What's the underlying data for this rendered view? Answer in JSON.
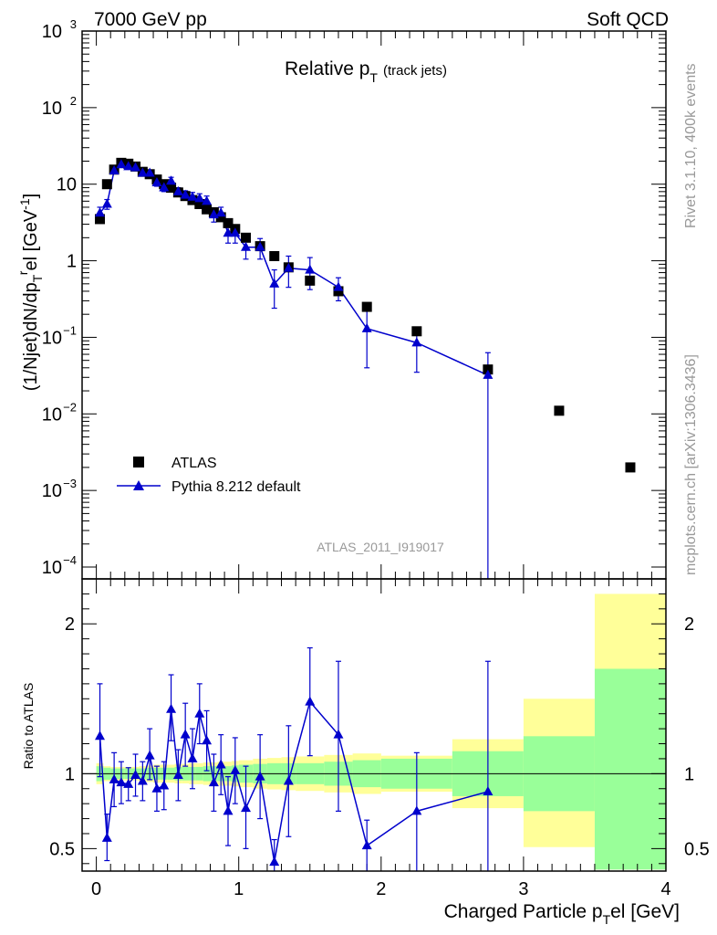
{
  "header": {
    "left": "7000 GeV pp",
    "right": "Soft QCD"
  },
  "side_labels": {
    "rivet": "Rivet 3.1.10,  400k events",
    "source": "mcplots.cern.ch [arXiv:1306.3436]"
  },
  "watermark": "ATLAS_2011_I919017",
  "colors": {
    "data": "#000000",
    "mc": "#0000cc",
    "band_inner": "#99ff99",
    "band_outer": "#ffff99"
  },
  "chart_data": [
    {
      "type": "scatter",
      "panel": "main",
      "title": "Relative p",
      "title_sub": "T",
      "title_note": "(track jets)",
      "ylabel": "(1/Njet)dN/dp",
      "ylabel_tail": "el [GeV",
      "yscale": "log",
      "xlim": [
        -0.1,
        4.0
      ],
      "ylim": [
        7e-05,
        1000
      ],
      "y_ticks": [
        {
          "value": 1000,
          "label": "10",
          "exp": "3"
        },
        {
          "value": 100,
          "label": "10",
          "exp": "2"
        },
        {
          "value": 10,
          "label": "10",
          "exp": ""
        },
        {
          "value": 1,
          "label": "1",
          "exp": ""
        },
        {
          "value": 0.1,
          "label": "10",
          "exp": "−1"
        },
        {
          "value": 0.01,
          "label": "10",
          "exp": "−2"
        },
        {
          "value": 0.001,
          "label": "10",
          "exp": "−3"
        },
        {
          "value": 0.0001,
          "label": "10",
          "exp": "−4"
        }
      ],
      "legend": {
        "position": "bottom-left",
        "entries": [
          "ATLAS",
          "Pythia 8.212 default"
        ]
      },
      "series": [
        {
          "name": "ATLAS",
          "marker": "square",
          "x": [
            0.025,
            0.075,
            0.125,
            0.175,
            0.225,
            0.275,
            0.325,
            0.375,
            0.425,
            0.475,
            0.525,
            0.575,
            0.625,
            0.675,
            0.725,
            0.775,
            0.825,
            0.875,
            0.925,
            0.975,
            1.05,
            1.15,
            1.25,
            1.35,
            1.5,
            1.7,
            1.9,
            2.25,
            2.75,
            3.25,
            3.75
          ],
          "y": [
            3.5,
            10.0,
            15.5,
            19.0,
            18.5,
            17.0,
            14.5,
            13.5,
            11.5,
            10.0,
            9.0,
            7.8,
            7.0,
            6.2,
            5.5,
            4.7,
            4.3,
            3.7,
            3.1,
            2.6,
            2.0,
            1.55,
            1.15,
            0.82,
            0.55,
            0.4,
            0.25,
            0.12,
            0.038,
            0.011,
            0.002
          ]
        },
        {
          "name": "Pythia 8.212 default",
          "marker": "triangle",
          "x": [
            0.025,
            0.075,
            0.125,
            0.175,
            0.225,
            0.275,
            0.325,
            0.375,
            0.425,
            0.475,
            0.525,
            0.575,
            0.625,
            0.675,
            0.725,
            0.775,
            0.825,
            0.875,
            0.925,
            0.975,
            1.05,
            1.15,
            1.25,
            1.35,
            1.5,
            1.7,
            1.9,
            2.25,
            2.75
          ],
          "y": [
            4.2,
            5.5,
            15.0,
            18.0,
            17.0,
            16.5,
            14.0,
            14.0,
            10.5,
            9.0,
            11.0,
            8.0,
            7.2,
            6.8,
            6.5,
            6.0,
            4.0,
            4.2,
            2.3,
            2.3,
            1.5,
            1.5,
            0.5,
            0.8,
            0.76,
            0.45,
            0.13,
            0.085,
            0.032
          ],
          "y_low": [
            3.4,
            4.7,
            13.8,
            17.0,
            16.0,
            15.5,
            12.8,
            12.8,
            9.4,
            8.0,
            9.7,
            7.0,
            6.2,
            5.8,
            5.5,
            5.0,
            3.2,
            3.4,
            1.7,
            1.7,
            1.05,
            1.05,
            0.24,
            0.45,
            0.42,
            0.3,
            0.04,
            0.035,
            7e-05
          ],
          "y_high": [
            5.0,
            6.3,
            16.2,
            19.0,
            18.0,
            17.5,
            15.2,
            15.2,
            11.6,
            10.0,
            12.3,
            9.0,
            8.2,
            7.8,
            7.5,
            7.0,
            4.8,
            5.0,
            2.9,
            2.9,
            1.95,
            1.95,
            0.76,
            1.15,
            1.1,
            0.6,
            0.22,
            0.135,
            0.063
          ]
        }
      ]
    },
    {
      "type": "line",
      "panel": "ratio",
      "ylabel": "Ratio to ATLAS",
      "xlabel": "Charged Particle p",
      "xlabel_sub": "T",
      "xlabel_tail": "el [GeV]",
      "xlim": [
        -0.1,
        4.0
      ],
      "ylim": [
        0.35,
        2.3
      ],
      "x_ticks": [
        "0",
        "1",
        "2",
        "3",
        "4"
      ],
      "x_tick_values": [
        0,
        1,
        2,
        3,
        4
      ],
      "y_ticks": [
        "0.5",
        "1",
        "2"
      ],
      "y_tick_values": [
        0.5,
        1,
        2
      ],
      "bands": {
        "edges": [
          0,
          0.05,
          0.1,
          0.15,
          0.2,
          0.25,
          0.3,
          0.35,
          0.4,
          0.45,
          0.5,
          0.55,
          0.6,
          0.65,
          0.7,
          0.75,
          0.8,
          0.85,
          0.9,
          0.95,
          1.0,
          1.1,
          1.2,
          1.3,
          1.4,
          1.6,
          1.8,
          2.0,
          2.5,
          3.0,
          3.5,
          4.0
        ],
        "inner_low": [
          0.95,
          0.96,
          0.965,
          0.965,
          0.965,
          0.965,
          0.965,
          0.96,
          0.96,
          0.96,
          0.96,
          0.955,
          0.955,
          0.955,
          0.955,
          0.95,
          0.95,
          0.95,
          0.95,
          0.945,
          0.94,
          0.935,
          0.93,
          0.93,
          0.93,
          0.92,
          0.91,
          0.9,
          0.85,
          0.75,
          0.36
        ],
        "inner_high": [
          1.05,
          1.04,
          1.035,
          1.035,
          1.035,
          1.035,
          1.035,
          1.04,
          1.04,
          1.04,
          1.04,
          1.045,
          1.045,
          1.045,
          1.045,
          1.05,
          1.05,
          1.05,
          1.05,
          1.055,
          1.06,
          1.065,
          1.07,
          1.07,
          1.07,
          1.08,
          1.09,
          1.1,
          1.15,
          1.25,
          1.7
        ],
        "outer_low": [
          0.93,
          0.95,
          0.955,
          0.955,
          0.955,
          0.955,
          0.95,
          0.945,
          0.94,
          0.94,
          0.94,
          0.935,
          0.935,
          0.93,
          0.93,
          0.925,
          0.925,
          0.92,
          0.92,
          0.915,
          0.91,
          0.9,
          0.895,
          0.89,
          0.885,
          0.875,
          0.865,
          0.88,
          0.77,
          0.51,
          0.36
        ],
        "outer_high": [
          1.07,
          1.05,
          1.045,
          1.045,
          1.045,
          1.045,
          1.05,
          1.055,
          1.06,
          1.06,
          1.06,
          1.065,
          1.065,
          1.07,
          1.07,
          1.075,
          1.075,
          1.08,
          1.08,
          1.085,
          1.09,
          1.1,
          1.105,
          1.11,
          1.115,
          1.125,
          1.135,
          1.12,
          1.23,
          1.5,
          2.2
        ]
      },
      "series": [
        {
          "name": "Pythia 8.212 default / ATLAS",
          "x": [
            0.025,
            0.075,
            0.125,
            0.175,
            0.225,
            0.275,
            0.325,
            0.375,
            0.425,
            0.475,
            0.525,
            0.575,
            0.625,
            0.675,
            0.725,
            0.775,
            0.825,
            0.875,
            0.925,
            0.975,
            1.05,
            1.15,
            1.25,
            1.35,
            1.5,
            1.7,
            1.9,
            2.25,
            2.75
          ],
          "y": [
            1.25,
            0.57,
            0.96,
            0.94,
            0.93,
            0.99,
            0.95,
            1.12,
            0.9,
            0.92,
            1.43,
            0.99,
            1.26,
            1.1,
            1.4,
            1.22,
            0.94,
            1.06,
            0.75,
            1.02,
            0.77,
            0.98,
            0.41,
            0.95,
            1.48,
            1.26,
            0.52,
            0.75,
            0.88
          ],
          "y_low": [
            0.98,
            0.42,
            0.78,
            0.8,
            0.82,
            0.85,
            0.82,
            0.96,
            0.75,
            0.76,
            1.22,
            0.82,
            1.05,
            0.9,
            1.2,
            1.02,
            0.75,
            0.86,
            0.52,
            0.8,
            0.5,
            0.7,
            0.35,
            0.58,
            1.12,
            0.75,
            0.35,
            0.35,
            0.35
          ],
          "y_high": [
            1.6,
            0.73,
            1.14,
            1.08,
            1.04,
            1.13,
            1.08,
            1.3,
            1.05,
            1.08,
            1.66,
            1.16,
            1.47,
            1.3,
            1.6,
            1.42,
            1.13,
            1.26,
            0.98,
            1.24,
            1.05,
            1.26,
            0.56,
            1.32,
            1.84,
            1.75,
            0.69,
            1.14,
            1.75
          ]
        }
      ]
    }
  ]
}
